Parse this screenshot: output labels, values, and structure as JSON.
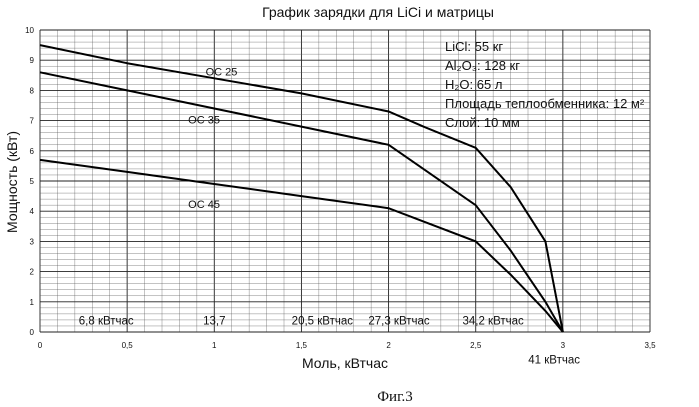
{
  "chart_data": {
    "type": "line",
    "title": "График зарядки для LiCi и матрицы",
    "xlabel": "Моль, кВтчас",
    "ylabel": "Мощность (кВт)",
    "xlim": [
      0,
      3.5
    ],
    "ylim": [
      0,
      10
    ],
    "x_ticks": [
      "0",
      "0,5",
      "1",
      "1,5",
      "2",
      "2,5",
      "3",
      "3,5"
    ],
    "y_ticks": [
      "0",
      "1",
      "2",
      "3",
      "4",
      "5",
      "6",
      "7",
      "8",
      "9",
      "10"
    ],
    "grid": true,
    "series": [
      {
        "name": "OC 25",
        "x": [
          0,
          0.5,
          1.0,
          1.5,
          2.0,
          2.2,
          2.5,
          2.7,
          2.9,
          3.0
        ],
        "y": [
          9.5,
          8.9,
          8.4,
          7.9,
          7.3,
          6.8,
          6.1,
          4.8,
          3.0,
          0
        ]
      },
      {
        "name": "OC 35",
        "x": [
          0,
          0.5,
          1.0,
          1.5,
          2.0,
          2.5,
          2.7,
          2.9,
          3.0
        ],
        "y": [
          8.6,
          8.0,
          7.4,
          6.8,
          6.2,
          4.2,
          2.7,
          1.0,
          0
        ]
      },
      {
        "name": "OC 45",
        "x": [
          0,
          0.5,
          1.0,
          1.5,
          2.0,
          2.5,
          2.7,
          2.9,
          3.0
        ],
        "y": [
          5.7,
          5.3,
          4.9,
          4.5,
          4.1,
          3.0,
          1.9,
          0.7,
          0
        ]
      }
    ],
    "info_box": [
      "LiCl: 55 кг",
      "Al₂O₃: 128 кг",
      "H₂O: 65 л",
      "Площадь теплообменника: 12 м²",
      "Слой: 10 мм"
    ],
    "energy_annotations": [
      {
        "text": "6,8 кВтчас",
        "x": 0.38,
        "y": 0.25
      },
      {
        "text": "13,7",
        "x": 1.0,
        "y": 0.25
      },
      {
        "text": "20,5 кВтчас",
        "x": 1.62,
        "y": 0.25
      },
      {
        "text": "27,3 кВтчас",
        "x": 2.06,
        "y": 0.25
      },
      {
        "text": "34,2 кВтчас",
        "x": 2.6,
        "y": 0.25
      },
      {
        "text": "41 кВтчас",
        "x": 2.95,
        "y": -1.05
      }
    ]
  },
  "caption": "Фиг.3"
}
